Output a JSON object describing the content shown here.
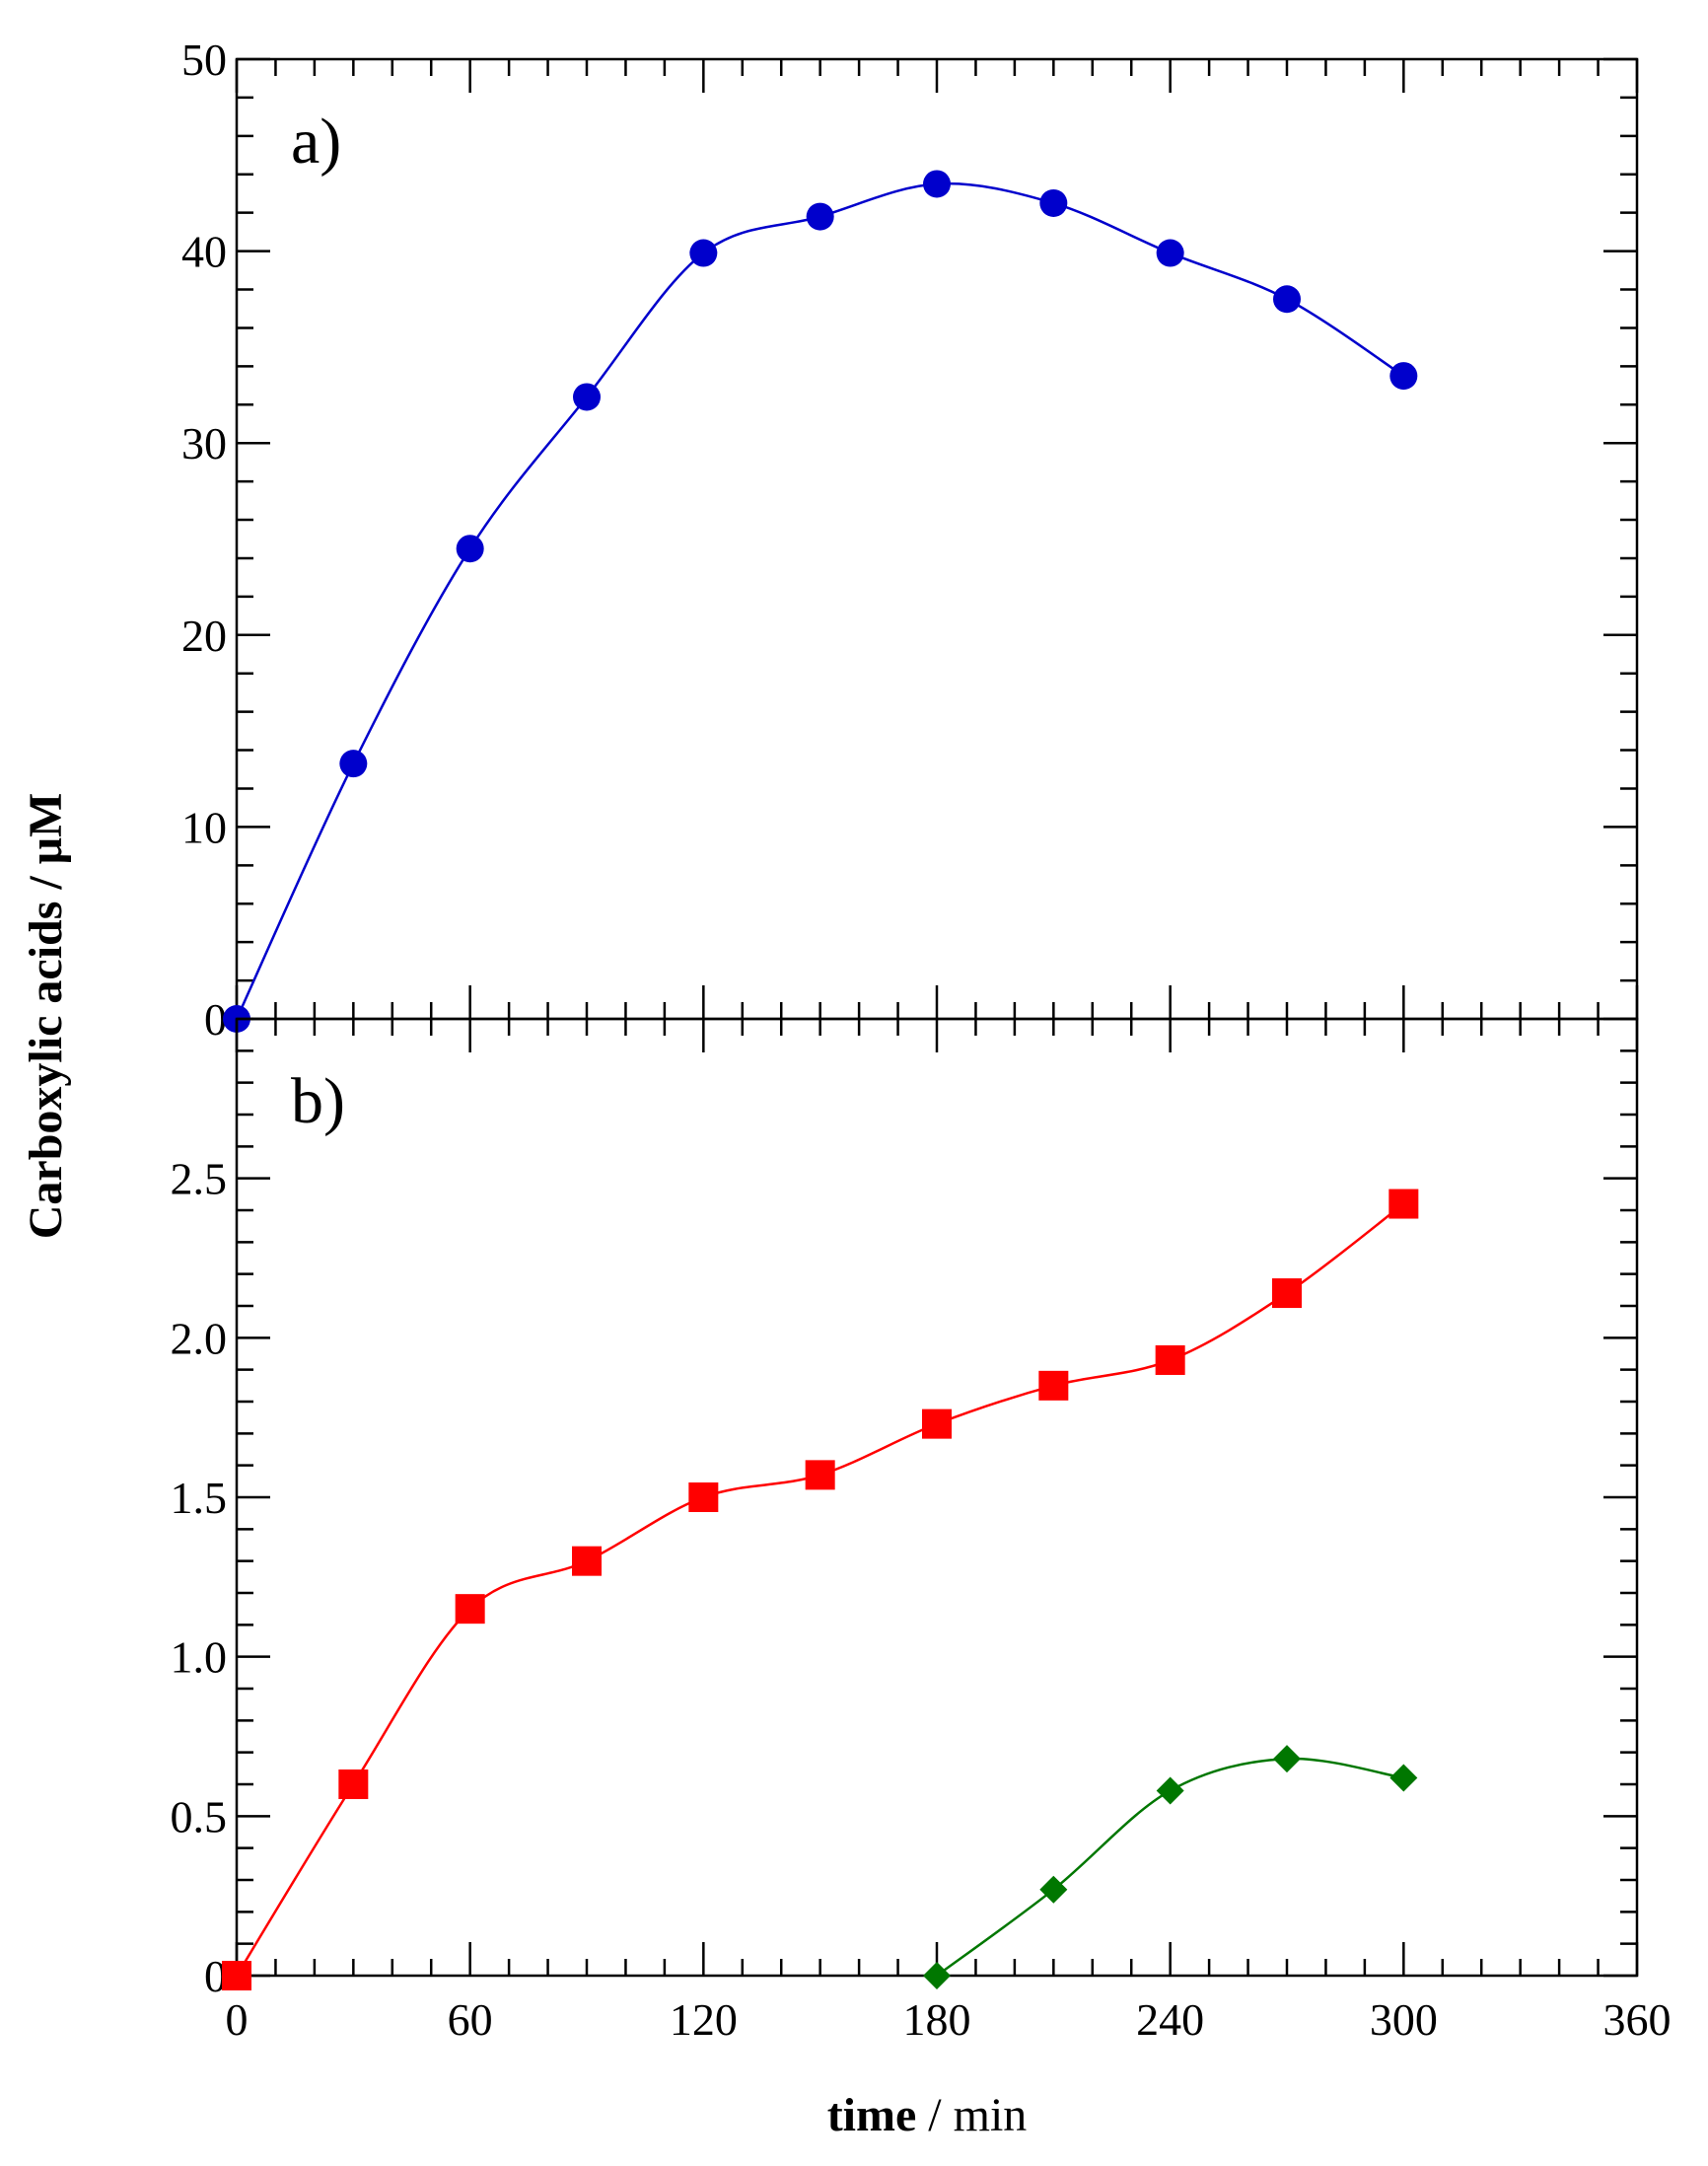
{
  "chart_data": {
    "type": "line",
    "shared_x": {
      "label_bold": "time",
      "label_rest": " / min",
      "range": [
        0,
        360
      ],
      "ticks": [
        0,
        60,
        120,
        180,
        240,
        300,
        360
      ],
      "tick_labels": [
        "0",
        "60",
        "120",
        "180",
        "240",
        "300",
        "360"
      ],
      "minor_step": 10
    },
    "shared_y_label": "Carboxylic acids / μM",
    "panels": [
      {
        "id": "a",
        "label": "a)",
        "ylim": [
          0,
          50
        ],
        "yticks": [
          0,
          10,
          20,
          30,
          40,
          50
        ],
        "ytick_labels": [
          "0",
          "10",
          "20",
          "30",
          "40",
          "50"
        ],
        "y_minor_step": 2,
        "series": [
          {
            "name": "series-a-circles",
            "marker": "circle",
            "color": "#0000cc",
            "x": [
              0,
              30,
              60,
              90,
              120,
              150,
              180,
              210,
              240,
              270,
              300
            ],
            "y": [
              0,
              13.3,
              24.5,
              32.4,
              39.9,
              41.8,
              43.5,
              42.5,
              39.9,
              37.5,
              33.5
            ]
          }
        ]
      },
      {
        "id": "b",
        "label": "b)",
        "ylim": [
          0,
          3.0
        ],
        "yticks": [
          0,
          0.5,
          1.0,
          1.5,
          2.0,
          2.5
        ],
        "ytick_labels": [
          "0",
          "0.5",
          "1.0",
          "1.5",
          "2.0",
          "2.5"
        ],
        "y_minor_step": 0.1,
        "series": [
          {
            "name": "series-b-squares",
            "marker": "square",
            "color": "#ff0000",
            "x": [
              0,
              30,
              60,
              90,
              120,
              150,
              180,
              210,
              240,
              270,
              300
            ],
            "y": [
              0,
              0.6,
              1.15,
              1.3,
              1.5,
              1.57,
              1.73,
              1.85,
              1.93,
              2.14,
              2.42
            ]
          },
          {
            "name": "series-b-diamonds",
            "marker": "diamond",
            "color": "#007700",
            "x": [
              180,
              210,
              240,
              270,
              300
            ],
            "y": [
              0,
              0.27,
              0.58,
              0.68,
              0.62
            ]
          }
        ]
      }
    ]
  }
}
